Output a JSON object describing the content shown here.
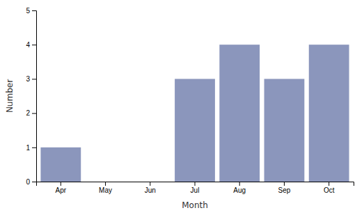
{
  "chart_data": {
    "type": "bar",
    "categories": [
      "Apr",
      "May",
      "Jun",
      "Jul",
      "Aug",
      "Sep",
      "Oct"
    ],
    "values": [
      1,
      0,
      0,
      3,
      4,
      3,
      4
    ],
    "color": "#8b96bc",
    "xlabel": "Month",
    "ylabel": "Number",
    "ylim": [
      0,
      5
    ],
    "yticks": [
      0,
      1,
      2,
      3,
      4,
      5
    ]
  }
}
